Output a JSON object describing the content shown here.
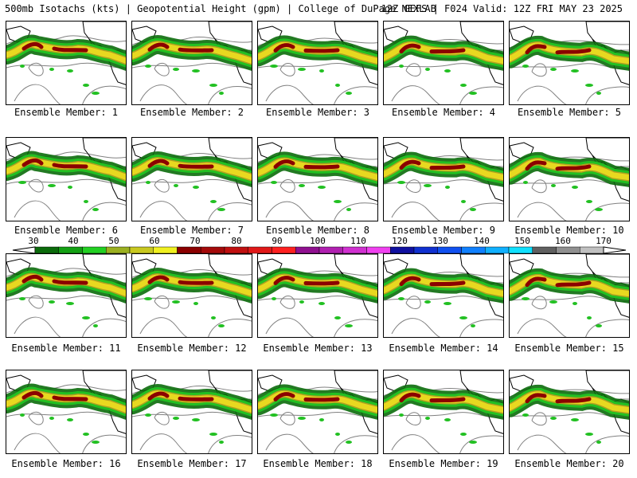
{
  "header": {
    "left": "500mb Isotachs (kts) | Geopotential Height (gpm) | College of DuPage NEXLAB",
    "right": "12Z GEFS | F024 Valid: 12Z FRI MAY 23 2025"
  },
  "caption_prefix": "Ensemble Member:",
  "panels": [
    {
      "member": "1"
    },
    {
      "member": "2"
    },
    {
      "member": "3"
    },
    {
      "member": "4"
    },
    {
      "member": "5"
    },
    {
      "member": "6"
    },
    {
      "member": "7"
    },
    {
      "member": "8"
    },
    {
      "member": "9"
    },
    {
      "member": "10"
    },
    {
      "member": "11"
    },
    {
      "member": "12"
    },
    {
      "member": "13"
    },
    {
      "member": "14"
    },
    {
      "member": "15"
    },
    {
      "member": "16"
    },
    {
      "member": "17"
    },
    {
      "member": "18"
    },
    {
      "member": "19"
    },
    {
      "member": "20"
    }
  ],
  "colorbar": {
    "labels": [
      "30",
      "40",
      "50",
      "60",
      "70",
      "80",
      "90",
      "100",
      "110",
      "120",
      "130",
      "140",
      "150",
      "160",
      "170"
    ],
    "colors": [
      "#0b6b0b",
      "#13a013",
      "#22d022",
      "#9bb020",
      "#c8c820",
      "#f0f020",
      "#8b0000",
      "#a40a0a",
      "#c01010",
      "#e01818",
      "#ff2020",
      "#901090",
      "#b020b0",
      "#d030d0",
      "#f040f0",
      "#1010a0",
      "#1030d0",
      "#1050f0",
      "#1080ff",
      "#10b0ff",
      "#10e0ff",
      "#606060",
      "#909090",
      "#c0c0c0"
    ]
  },
  "style": {
    "land_outline": "#000000",
    "height_contour": "#808080",
    "jet_green_dark": "#0b6b0b",
    "jet_green": "#22c022",
    "jet_olive": "#b0a020",
    "jet_yellow": "#e8d820",
    "jet_core": "#8b0000"
  }
}
